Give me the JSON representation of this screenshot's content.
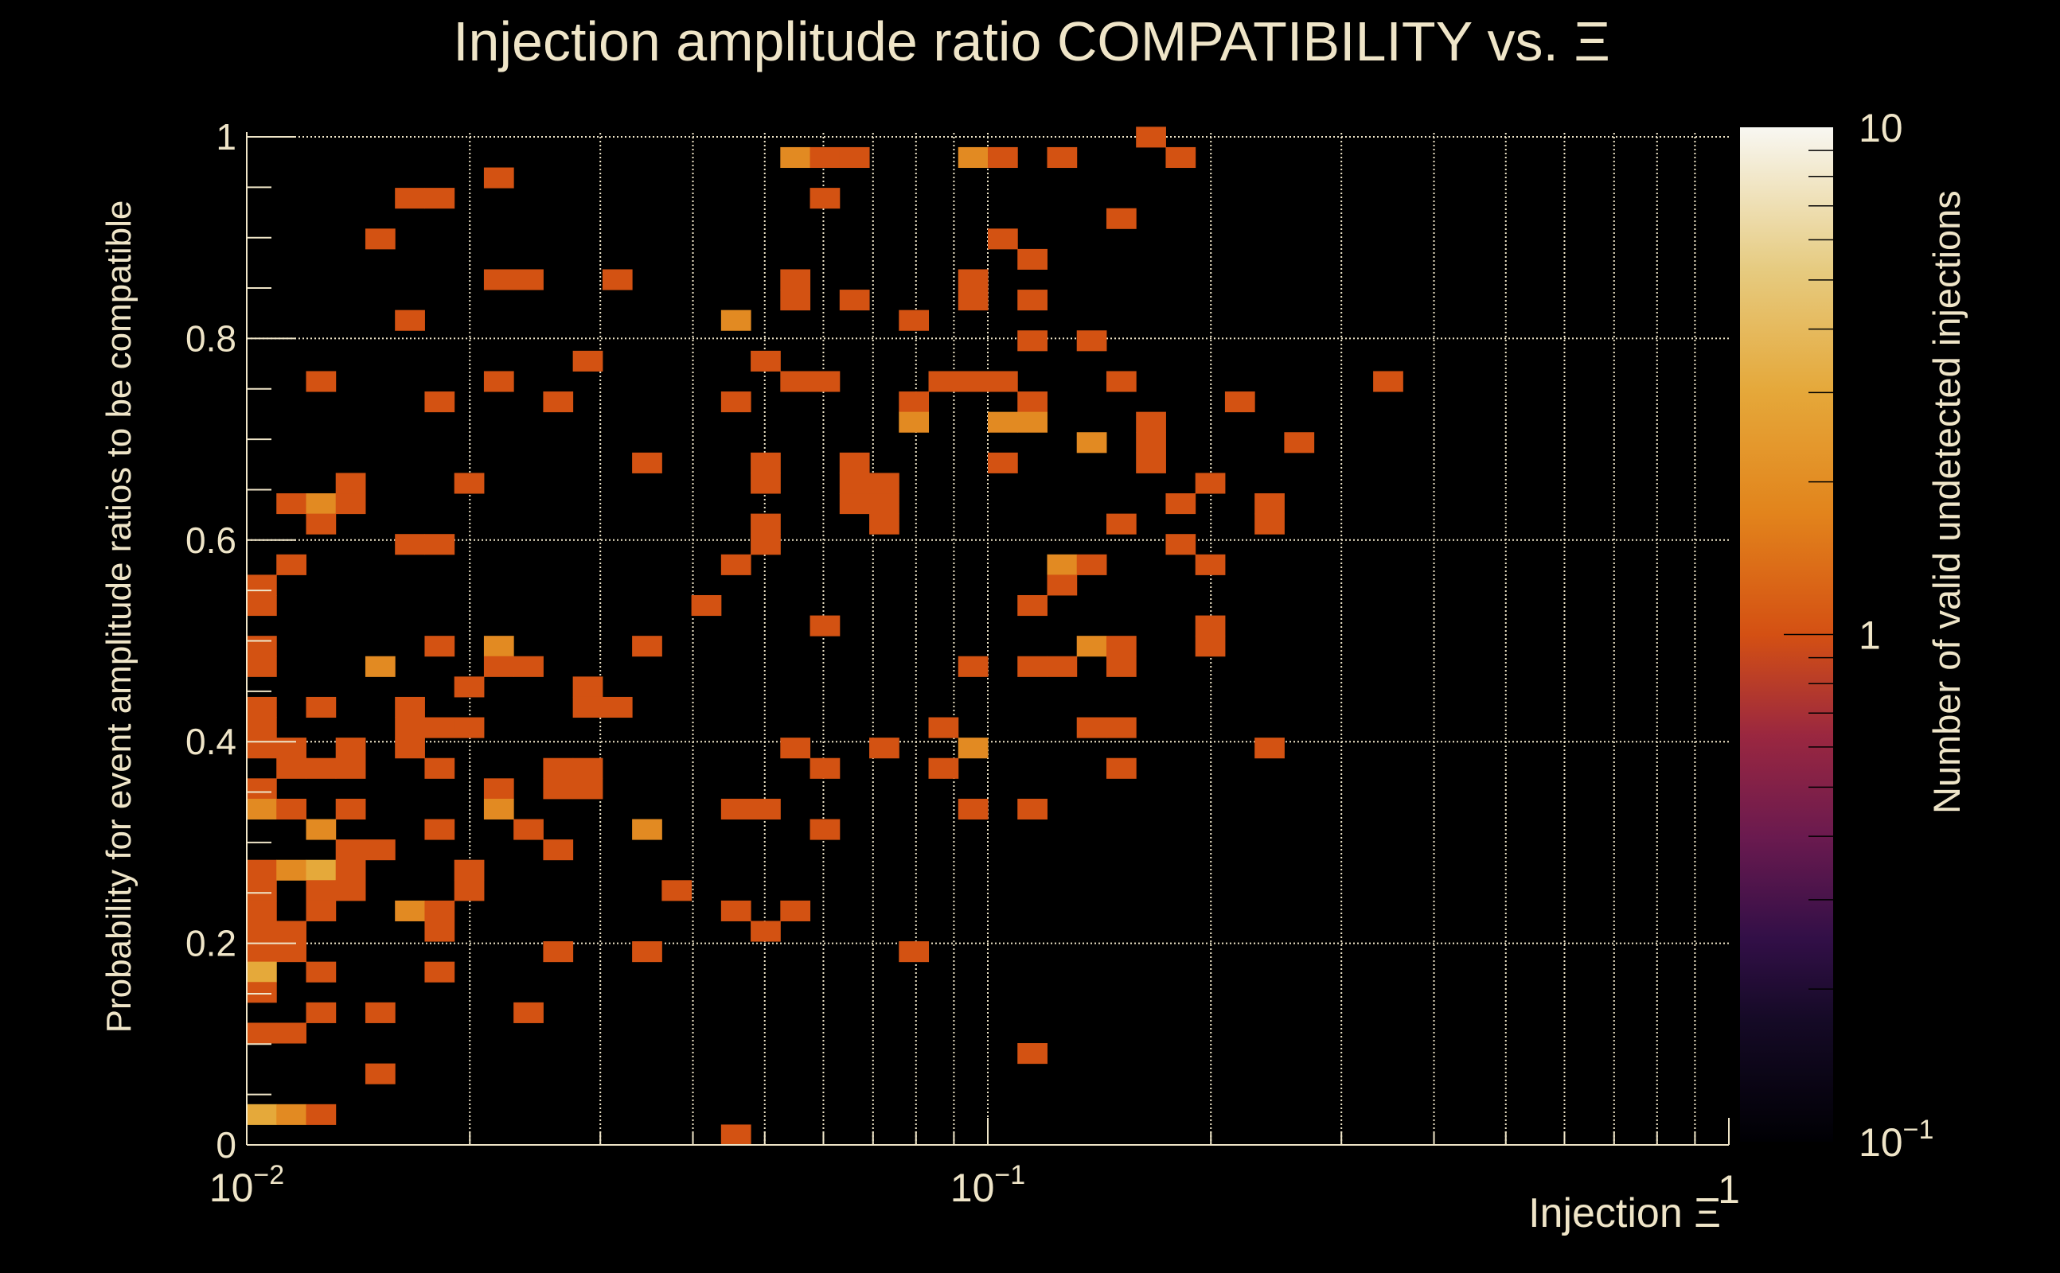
{
  "chart_data": {
    "type": "heatmap",
    "title": "Injection amplitude ratio COMPATIBILITY vs.  Ξ",
    "xlabel": "Injection Ξ",
    "ylabel": "Probability for event amplitude ratios to be compatible",
    "zlabel": "Number of valid undetected injections",
    "xlim": [
      0.01,
      1
    ],
    "xscale": "log",
    "ylim": [
      0,
      1
    ],
    "zlim": [
      0.1,
      10
    ],
    "zscale": "log",
    "grid": true,
    "x_bins": {
      "n": 50,
      "min": 0.01,
      "max": 1,
      "log": true
    },
    "y_bins": {
      "n": 50,
      "min": 0,
      "max": 1.01
    },
    "x_ticks": [
      {
        "value": 0.01,
        "base": "10",
        "exp": "−2"
      },
      {
        "value": 0.1,
        "base": "10",
        "exp": "−1"
      },
      {
        "value": 1,
        "base": "1",
        "exp": ""
      }
    ],
    "y_ticks": [
      {
        "value": 0,
        "label": "0"
      },
      {
        "value": 0.2,
        "label": "0.2"
      },
      {
        "value": 0.4,
        "label": "0.4"
      },
      {
        "value": 0.6,
        "label": "0.6"
      },
      {
        "value": 0.8,
        "label": "0.8"
      },
      {
        "value": 1,
        "label": "1"
      }
    ],
    "z_ticks": [
      {
        "value": 10,
        "base": "10",
        "exp": ""
      },
      {
        "value": 1,
        "base": "1",
        "exp": ""
      },
      {
        "value": 0.1,
        "base": "10",
        "exp": "−1"
      }
    ],
    "count_colors": {
      "1": "#d35212",
      "2": "#e28a22",
      "3": "#e5a93a"
    },
    "cells_format": [
      "x_bin",
      "y_bin",
      "count"
    ],
    "cells": [
      [
        18,
        48,
        2
      ],
      [
        8,
        47,
        1
      ],
      [
        5,
        46,
        1
      ],
      [
        6,
        46,
        1
      ],
      [
        4,
        44,
        1
      ],
      [
        8,
        42,
        1
      ],
      [
        9,
        42,
        1
      ],
      [
        12,
        42,
        1
      ],
      [
        18,
        42,
        1
      ],
      [
        18,
        41,
        1
      ],
      [
        5,
        40,
        1
      ],
      [
        16,
        40,
        2
      ],
      [
        11,
        38,
        1
      ],
      [
        17,
        38,
        1
      ],
      [
        2,
        37,
        1
      ],
      [
        8,
        37,
        1
      ],
      [
        18,
        37,
        1
      ],
      [
        6,
        36,
        1
      ],
      [
        10,
        36,
        1
      ],
      [
        16,
        36,
        1
      ],
      [
        13,
        33,
        1
      ],
      [
        17,
        33,
        1
      ],
      [
        17,
        32,
        1
      ],
      [
        3,
        32,
        1
      ],
      [
        7,
        32,
        1
      ],
      [
        1,
        31,
        1
      ],
      [
        2,
        31,
        2
      ],
      [
        3,
        31,
        1
      ],
      [
        2,
        30,
        1
      ],
      [
        17,
        30,
        1
      ],
      [
        5,
        29,
        1
      ],
      [
        6,
        29,
        1
      ],
      [
        17,
        29,
        1
      ],
      [
        1,
        28,
        1
      ],
      [
        16,
        28,
        1
      ],
      [
        0,
        27,
        1
      ],
      [
        0,
        26,
        1
      ],
      [
        15,
        26,
        1
      ],
      [
        0,
        24,
        1
      ],
      [
        6,
        24,
        1
      ],
      [
        8,
        24,
        2
      ],
      [
        13,
        24,
        1
      ],
      [
        0,
        23,
        1
      ],
      [
        4,
        23,
        2
      ],
      [
        8,
        23,
        1
      ],
      [
        9,
        23,
        1
      ],
      [
        7,
        22,
        1
      ],
      [
        11,
        22,
        1
      ],
      [
        0,
        21,
        1
      ],
      [
        2,
        21,
        1
      ],
      [
        5,
        21,
        1
      ],
      [
        11,
        21,
        1
      ],
      [
        12,
        21,
        1
      ],
      [
        0,
        20,
        1
      ],
      [
        5,
        20,
        1
      ],
      [
        6,
        20,
        1
      ],
      [
        7,
        20,
        1
      ],
      [
        0,
        19,
        1
      ],
      [
        1,
        19,
        1
      ],
      [
        3,
        19,
        1
      ],
      [
        5,
        19,
        1
      ],
      [
        18,
        19,
        1
      ],
      [
        1,
        18,
        1
      ],
      [
        2,
        18,
        1
      ],
      [
        3,
        18,
        1
      ],
      [
        6,
        18,
        1
      ],
      [
        10,
        18,
        1
      ],
      [
        11,
        18,
        1
      ],
      [
        0,
        17,
        1
      ],
      [
        8,
        17,
        1
      ],
      [
        10,
        17,
        1
      ],
      [
        11,
        17,
        1
      ],
      [
        0,
        16,
        2
      ],
      [
        1,
        16,
        1
      ],
      [
        3,
        16,
        1
      ],
      [
        8,
        16,
        2
      ],
      [
        16,
        16,
        1
      ],
      [
        17,
        16,
        1
      ],
      [
        2,
        15,
        2
      ],
      [
        6,
        15,
        1
      ],
      [
        9,
        15,
        1
      ],
      [
        13,
        15,
        2
      ],
      [
        3,
        14,
        1
      ],
      [
        4,
        14,
        1
      ],
      [
        10,
        14,
        1
      ],
      [
        0,
        13,
        1
      ],
      [
        1,
        13,
        2
      ],
      [
        2,
        13,
        3
      ],
      [
        3,
        13,
        1
      ],
      [
        7,
        13,
        1
      ],
      [
        0,
        12,
        1
      ],
      [
        2,
        12,
        1
      ],
      [
        3,
        12,
        1
      ],
      [
        7,
        12,
        1
      ],
      [
        14,
        12,
        1
      ],
      [
        0,
        11,
        1
      ],
      [
        2,
        11,
        1
      ],
      [
        5,
        11,
        2
      ],
      [
        6,
        11,
        1
      ],
      [
        16,
        11,
        1
      ],
      [
        18,
        11,
        1
      ],
      [
        0,
        10,
        1
      ],
      [
        1,
        10,
        1
      ],
      [
        6,
        10,
        1
      ],
      [
        17,
        10,
        1
      ],
      [
        0,
        9,
        1
      ],
      [
        1,
        9,
        1
      ],
      [
        10,
        9,
        1
      ],
      [
        13,
        9,
        1
      ],
      [
        0,
        8,
        3
      ],
      [
        2,
        8,
        1
      ],
      [
        6,
        8,
        1
      ],
      [
        0,
        7,
        1
      ],
      [
        2,
        6,
        1
      ],
      [
        4,
        6,
        1
      ],
      [
        9,
        6,
        1
      ],
      [
        0,
        5,
        1
      ],
      [
        1,
        5,
        1
      ],
      [
        4,
        3,
        1
      ],
      [
        0,
        1,
        3
      ],
      [
        1,
        1,
        2
      ],
      [
        2,
        1,
        1
      ],
      [
        16,
        0,
        1
      ],
      [
        30,
        49,
        1
      ],
      [
        19,
        48,
        1
      ],
      [
        20,
        48,
        1
      ],
      [
        24,
        48,
        2
      ],
      [
        25,
        48,
        1
      ],
      [
        27,
        48,
        1
      ],
      [
        31,
        48,
        1
      ],
      [
        19,
        46,
        1
      ],
      [
        29,
        45,
        1
      ],
      [
        25,
        44,
        1
      ],
      [
        26,
        43,
        1
      ],
      [
        24,
        42,
        1
      ],
      [
        20,
        41,
        1
      ],
      [
        24,
        41,
        1
      ],
      [
        26,
        41,
        1
      ],
      [
        22,
        40,
        1
      ],
      [
        26,
        39,
        1
      ],
      [
        28,
        39,
        1
      ],
      [
        19,
        37,
        1
      ],
      [
        23,
        37,
        1
      ],
      [
        24,
        37,
        1
      ],
      [
        25,
        37,
        1
      ],
      [
        29,
        37,
        1
      ],
      [
        38,
        37,
        1
      ],
      [
        22,
        36,
        1
      ],
      [
        26,
        36,
        1
      ],
      [
        33,
        36,
        1
      ],
      [
        22,
        35,
        2
      ],
      [
        25,
        35,
        2
      ],
      [
        26,
        35,
        2
      ],
      [
        30,
        35,
        1
      ],
      [
        28,
        34,
        2
      ],
      [
        30,
        34,
        1
      ],
      [
        35,
        34,
        1
      ],
      [
        20,
        33,
        1
      ],
      [
        25,
        33,
        1
      ],
      [
        30,
        33,
        1
      ],
      [
        20,
        32,
        1
      ],
      [
        21,
        32,
        1
      ],
      [
        32,
        32,
        1
      ],
      [
        20,
        31,
        1
      ],
      [
        21,
        31,
        1
      ],
      [
        31,
        31,
        1
      ],
      [
        34,
        31,
        1
      ],
      [
        21,
        30,
        1
      ],
      [
        29,
        30,
        1
      ],
      [
        34,
        30,
        1
      ],
      [
        31,
        29,
        1
      ],
      [
        27,
        28,
        2
      ],
      [
        28,
        28,
        1
      ],
      [
        32,
        28,
        1
      ],
      [
        27,
        27,
        1
      ],
      [
        26,
        26,
        1
      ],
      [
        19,
        25,
        1
      ],
      [
        32,
        25,
        1
      ],
      [
        28,
        24,
        2
      ],
      [
        29,
        24,
        1
      ],
      [
        32,
        24,
        1
      ],
      [
        24,
        23,
        1
      ],
      [
        26,
        23,
        1
      ],
      [
        27,
        23,
        1
      ],
      [
        29,
        23,
        1
      ],
      [
        23,
        20,
        1
      ],
      [
        28,
        20,
        1
      ],
      [
        29,
        20,
        1
      ],
      [
        21,
        19,
        1
      ],
      [
        24,
        19,
        2
      ],
      [
        34,
        19,
        1
      ],
      [
        19,
        18,
        1
      ],
      [
        23,
        18,
        1
      ],
      [
        29,
        18,
        1
      ],
      [
        24,
        16,
        1
      ],
      [
        26,
        16,
        1
      ],
      [
        19,
        15,
        1
      ],
      [
        22,
        9,
        1
      ],
      [
        26,
        4,
        1
      ]
    ]
  }
}
